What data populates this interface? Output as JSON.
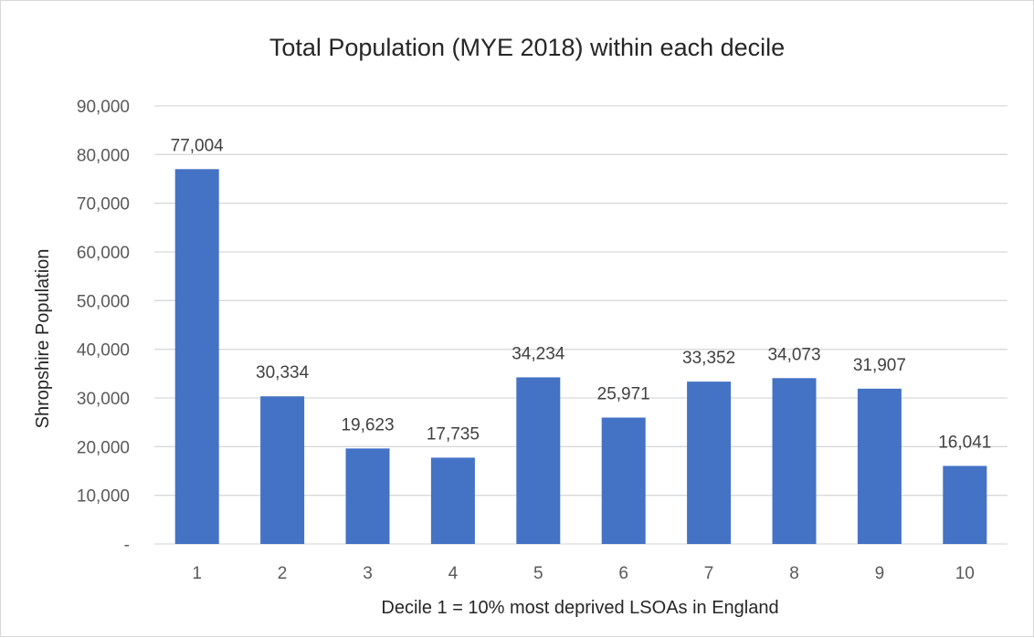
{
  "chart_data": {
    "type": "bar",
    "title": "Total Population (MYE 2018) within each decile",
    "xlabel": "Decile 1 = 10% most deprived LSOAs in England",
    "ylabel": "Shropshire Population",
    "categories": [
      "1",
      "2",
      "3",
      "4",
      "5",
      "6",
      "7",
      "8",
      "9",
      "10"
    ],
    "values": [
      77004,
      30334,
      19623,
      17735,
      34234,
      25971,
      33352,
      34073,
      31907,
      16041
    ],
    "data_labels": [
      "77,004",
      "30,334",
      "19,623",
      "17,735",
      "34,234",
      "25,971",
      "33,352",
      "34,073",
      "31,907",
      "16,041"
    ],
    "ylim": [
      0,
      90000
    ],
    "yticks": [
      0,
      10000,
      20000,
      30000,
      40000,
      50000,
      60000,
      70000,
      80000,
      90000
    ],
    "ytick_labels": [
      "-",
      "10,000",
      "20,000",
      "30,000",
      "40,000",
      "50,000",
      "60,000",
      "70,000",
      "80,000",
      "90,000"
    ],
    "grid": true,
    "legend": "none",
    "bar_color": "#4472C4",
    "grid_color": "#d9d9d9"
  }
}
